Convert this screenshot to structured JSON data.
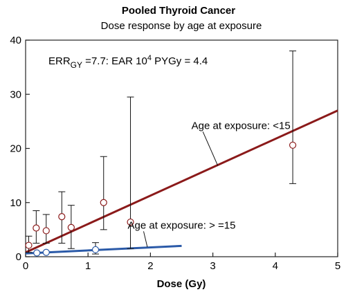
{
  "chart_data": {
    "type": "scatter",
    "title": "Pooled Thyroid Cancer",
    "subtitle": "Dose response by age at exposure",
    "xlabel": "Dose (Gy)",
    "ylabel": "",
    "xlim": [
      0,
      5
    ],
    "ylim": [
      0,
      40
    ],
    "xticks": [
      "0",
      "1",
      "2",
      "3",
      "4",
      "5"
    ],
    "yticks": [
      "0",
      "10",
      "20",
      "30",
      "40"
    ],
    "grid": false,
    "annotation": {
      "err_prefix": "ERR",
      "err_sub": "GY",
      "err_mid": " =7.7: EAR 10",
      "ear_sup": "4",
      "ear_end": " PYGy = 4.4"
    },
    "series": [
      {
        "name": "Age at exposure: <15",
        "color": "#8b1a1a",
        "fit_line": {
          "x": [
            0,
            5
          ],
          "y": [
            0.8,
            27.0
          ]
        },
        "points": [
          {
            "x": 0.05,
            "y": 2.1,
            "lo": 0.8,
            "hi": 3.8
          },
          {
            "x": 0.17,
            "y": 5.3,
            "lo": 2.5,
            "hi": 8.5
          },
          {
            "x": 0.33,
            "y": 4.8,
            "lo": 2.5,
            "hi": 7.8
          },
          {
            "x": 0.58,
            "y": 7.4,
            "lo": 2.5,
            "hi": 12.0
          },
          {
            "x": 0.73,
            "y": 5.4,
            "lo": 1.5,
            "hi": 9.5
          },
          {
            "x": 1.25,
            "y": 10.0,
            "lo": 5.0,
            "hi": 18.5
          },
          {
            "x": 1.68,
            "y": 6.4,
            "lo": 1.5,
            "hi": 29.5
          },
          {
            "x": 4.28,
            "y": 20.6,
            "lo": 13.5,
            "hi": 38.0
          }
        ]
      },
      {
        "name": "Age at exposure: > =15",
        "color": "#2b5aa8",
        "fit_line": {
          "x": [
            0,
            2.5
          ],
          "y": [
            0.6,
            2.0
          ]
        },
        "points": [
          {
            "x": 0.18,
            "y": 0.7
          },
          {
            "x": 0.33,
            "y": 0.8
          },
          {
            "x": 1.12,
            "y": 1.3,
            "lo": 0.5,
            "hi": 2.6
          }
        ]
      }
    ],
    "labels": [
      {
        "text": "Age at exposure: <15",
        "x": 3.45,
        "y": 23.6,
        "pointer_to": [
          3.08,
          16.8
        ]
      },
      {
        "text": "Age at exposure: > =15",
        "x": 2.5,
        "y": 5.2,
        "pointer_to": [
          1.95,
          1.8
        ]
      }
    ]
  }
}
